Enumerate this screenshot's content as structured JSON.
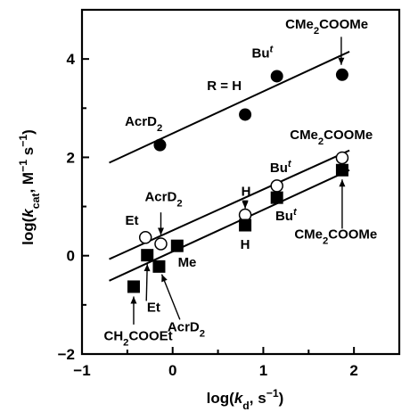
{
  "chart_data": {
    "type": "scatter",
    "xlabel_parts": [
      "log(",
      "k",
      "d",
      ", s",
      "−1",
      ")"
    ],
    "ylabel_parts": [
      "log(",
      "k",
      "cat",
      ", M",
      "−1",
      " s",
      "−1",
      ")"
    ],
    "xlim": [
      -1,
      2.5
    ],
    "ylim": [
      -2,
      5
    ],
    "xticks": [
      -1,
      0,
      1,
      2
    ],
    "yticks": [
      -2,
      0,
      2,
      4
    ],
    "xtick_labels": [
      "−1",
      "0",
      "1",
      "2"
    ],
    "ytick_labels": [
      "−2",
      "0",
      "2",
      "4"
    ],
    "series": [
      {
        "marker": "filled-circle",
        "points": [
          {
            "x": -0.14,
            "y": 2.25
          },
          {
            "x": 0.8,
            "y": 2.87
          },
          {
            "x": 1.15,
            "y": 3.65
          },
          {
            "x": 1.87,
            "y": 3.68
          }
        ],
        "fit": {
          "x": [
            -0.7,
            1.95
          ],
          "y": [
            1.89,
            4.15
          ]
        }
      },
      {
        "marker": "open-circle",
        "points": [
          {
            "x": -0.3,
            "y": 0.37
          },
          {
            "x": -0.13,
            "y": 0.24
          },
          {
            "x": 0.8,
            "y": 0.83
          },
          {
            "x": 1.15,
            "y": 1.42
          },
          {
            "x": 1.87,
            "y": 1.99
          }
        ],
        "fit": {
          "x": [
            -0.7,
            1.95
          ],
          "y": [
            -0.07,
            2.14
          ]
        }
      },
      {
        "marker": "filled-square",
        "points": [
          {
            "x": -0.43,
            "y": -0.63
          },
          {
            "x": -0.28,
            "y": 0.01
          },
          {
            "x": -0.15,
            "y": -0.22
          },
          {
            "x": 0.05,
            "y": 0.2
          },
          {
            "x": 0.8,
            "y": 0.62
          },
          {
            "x": 1.15,
            "y": 1.18
          },
          {
            "x": 1.87,
            "y": 1.74
          }
        ],
        "fit": {
          "x": [
            -0.7,
            1.95
          ],
          "y": [
            -0.51,
            1.74
          ]
        }
      }
    ],
    "annotations": [
      {
        "parts": [
          "AcrD",
          "2"
        ],
        "x": -0.32,
        "y": 2.64
      },
      {
        "parts": [
          "R = H"
        ],
        "x": 0.57,
        "y": 3.37
      },
      {
        "parts": [
          "Bu",
          "t"
        ],
        "x": 0.99,
        "y": 4.03
      },
      {
        "parts": [
          "CMe",
          "2",
          "COOMe"
        ],
        "x": 1.7,
        "y": 4.62
      },
      {
        "parts": [
          "CMe",
          "2",
          "COOMe"
        ],
        "x": 1.75,
        "y": 2.37
      },
      {
        "parts": [
          "Bu",
          "t"
        ],
        "x": 1.19,
        "y": 1.7
      },
      {
        "parts": [
          "H"
        ],
        "x": 0.81,
        "y": 1.22
      },
      {
        "parts": [
          "AcrD",
          "2"
        ],
        "x": -0.1,
        "y": 1.11
      },
      {
        "parts": [
          "Et"
        ],
        "x": -0.45,
        "y": 0.63
      },
      {
        "parts": [
          "Bu",
          "t"
        ],
        "x": 1.25,
        "y": 0.72
      },
      {
        "parts": [
          "H"
        ],
        "x": 0.8,
        "y": 0.14
      },
      {
        "parts": [
          "Me"
        ],
        "x": 0.16,
        "y": -0.22
      },
      {
        "parts": [
          "Et"
        ],
        "x": -0.21,
        "y": -1.14
      },
      {
        "parts": [
          "AcrD",
          "2"
        ],
        "x": 0.15,
        "y": -1.54
      },
      {
        "parts": [
          "CMe",
          "2",
          "COOMe"
        ],
        "x": 1.8,
        "y": 0.35
      },
      {
        "parts": [
          "CH",
          "2",
          "COOEt"
        ],
        "x": -0.38,
        "y": -1.72
      }
    ]
  }
}
